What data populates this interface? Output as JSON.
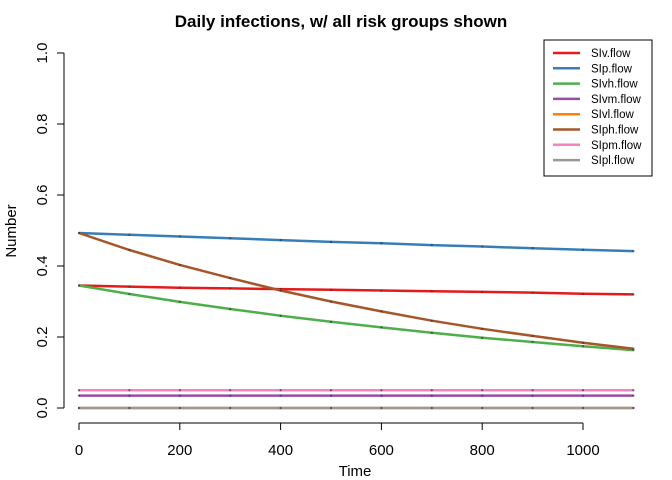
{
  "chart_data": {
    "type": "line",
    "title": "Daily infections, w/ all risk groups shown",
    "xlabel": "Time",
    "ylabel": "Number",
    "xlim": [
      0,
      1100
    ],
    "ylim": [
      0,
      1.0
    ],
    "x_ticks": [
      0,
      200,
      400,
      600,
      800,
      1000
    ],
    "y_ticks": [
      0.0,
      0.2,
      0.4,
      0.6,
      0.8,
      1.0
    ],
    "y_tick_labels": [
      "0.0",
      "0.2",
      "0.4",
      "0.6",
      "0.8",
      "1.0"
    ],
    "x_tick_labels": [
      "0",
      "200",
      "400",
      "600",
      "800",
      "1000"
    ],
    "grid": false,
    "legend_position": "top-right",
    "x": [
      0,
      100,
      200,
      300,
      400,
      500,
      600,
      700,
      800,
      900,
      1000,
      1100
    ],
    "series": [
      {
        "name": "SIv.flow",
        "color": "#e41a1c",
        "values": [
          0.345,
          0.342,
          0.339,
          0.337,
          0.335,
          0.333,
          0.331,
          0.329,
          0.327,
          0.325,
          0.322,
          0.32
        ]
      },
      {
        "name": "SIp.flow",
        "color": "#377eb8",
        "values": [
          0.493,
          0.488,
          0.483,
          0.478,
          0.473,
          0.468,
          0.464,
          0.459,
          0.455,
          0.45,
          0.446,
          0.442
        ]
      },
      {
        "name": "SIvh.flow",
        "color": "#4daf4a",
        "values": [
          0.345,
          0.321,
          0.299,
          0.279,
          0.26,
          0.243,
          0.227,
          0.212,
          0.198,
          0.186,
          0.174,
          0.163
        ]
      },
      {
        "name": "SIvm.flow",
        "color": "#984ea3",
        "values": [
          0.035,
          0.035,
          0.035,
          0.035,
          0.035,
          0.035,
          0.035,
          0.035,
          0.035,
          0.035,
          0.035,
          0.035
        ]
      },
      {
        "name": "SIvl.flow",
        "color": "#ff7f00",
        "values": [
          0.0,
          0.0,
          0.0,
          0.0,
          0.0,
          0.0,
          0.0,
          0.0,
          0.0,
          0.0,
          0.0,
          0.0
        ]
      },
      {
        "name": "SIph.flow",
        "color": "#a65628",
        "values": [
          0.493,
          0.445,
          0.403,
          0.366,
          0.331,
          0.3,
          0.272,
          0.246,
          0.223,
          0.203,
          0.184,
          0.167
        ]
      },
      {
        "name": "SIpm.flow",
        "color": "#f781bf",
        "values": [
          0.05,
          0.05,
          0.05,
          0.05,
          0.05,
          0.05,
          0.05,
          0.05,
          0.05,
          0.05,
          0.05,
          0.05
        ]
      },
      {
        "name": "SIpl.flow",
        "color": "#999999",
        "values": [
          0.0,
          0.0,
          0.0,
          0.0,
          0.0,
          0.0,
          0.0,
          0.0,
          0.0,
          0.0,
          0.0,
          0.0
        ]
      }
    ]
  }
}
